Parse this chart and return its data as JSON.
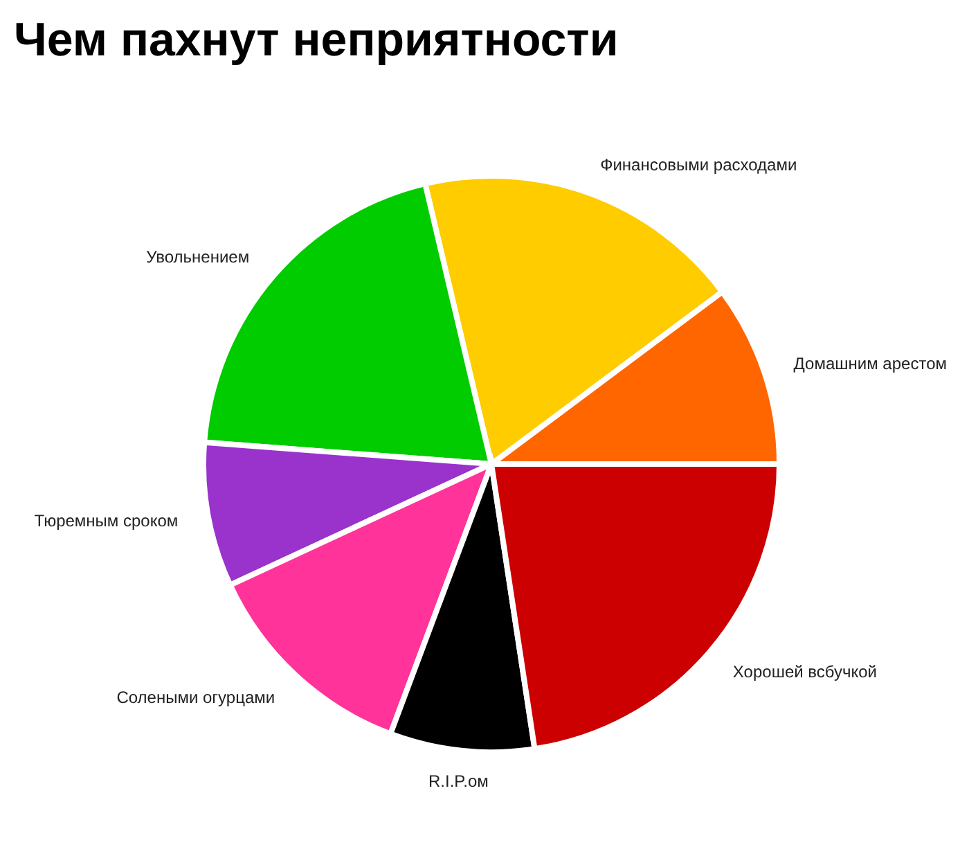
{
  "chart_data": {
    "type": "pie",
    "title": "Чем пахнут неприятности",
    "categories": [
      "Домашним арестом",
      "Финансовыми расходами",
      "Увольнением",
      "Тюремным сроком",
      "Солеными огурцами",
      "R.I.P.ом",
      "Хорошей всбучкой"
    ],
    "values": [
      10.2,
      18.5,
      20.1,
      8.1,
      12.4,
      8.1,
      22.6
    ],
    "colors": [
      "#ff6600",
      "#ffcc00",
      "#00cc00",
      "#9933cc",
      "#ff3399",
      "#000000",
      "#cc0000"
    ],
    "legend": false
  }
}
